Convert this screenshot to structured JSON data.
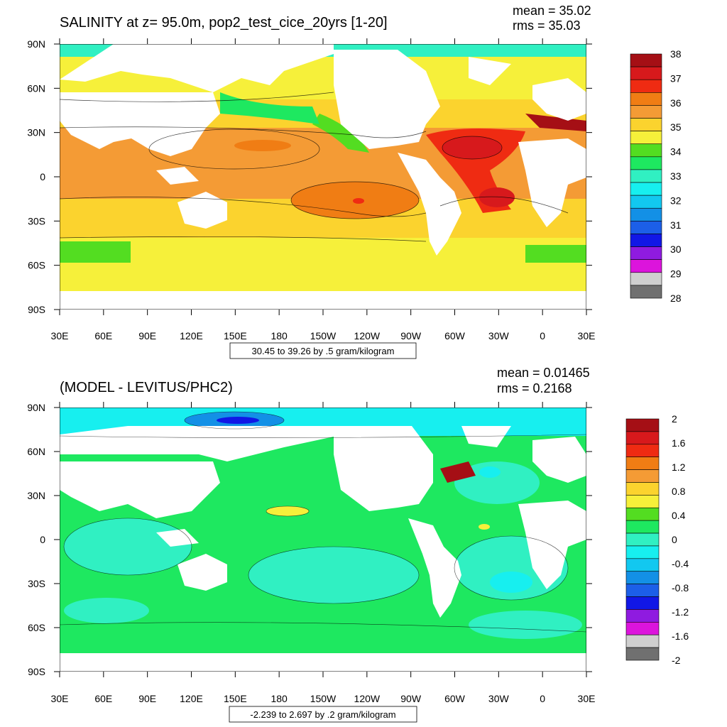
{
  "panels": [
    {
      "id": "top",
      "title": "SALINITY at z=  95.0m, pop2_test_cice_20yrs [1-20]",
      "stats": {
        "mean": "mean = 35.02",
        "rms": "rms = 35.03"
      },
      "info_box": "30.45 to 39.26 by .5 gram/kilogram",
      "colorbar": {
        "labels": [
          "38",
          "37",
          "36",
          "35",
          "34",
          "33",
          "32",
          "31",
          "30",
          "29",
          "28"
        ],
        "colors": [
          "#a50f15",
          "#d7191c",
          "#ef2b12",
          "#f07d14",
          "#f49b35",
          "#fbd32e",
          "#f6f03a",
          "#53dd21",
          "#1ee860",
          "#30f0c2",
          "#17efef",
          "#12c8f0",
          "#1390e6",
          "#1c5fe8",
          "#1117e6",
          "#8f1be0",
          "#dc14dc",
          "#cfcfcf",
          "#707070"
        ]
      },
      "ylabels": [
        "90N",
        "60N",
        "30N",
        "0",
        "30S",
        "60S",
        "90S"
      ],
      "xlabels": [
        "30E",
        "60E",
        "90E",
        "120E",
        "150E",
        "180",
        "150W",
        "120W",
        "90W",
        "60W",
        "30W",
        "0",
        "30E"
      ]
    },
    {
      "id": "bottom",
      "title": "(MODEL - LEVITUS/PHC2)",
      "stats": {
        "mean": "mean = 0.01465",
        "rms": "rms = 0.2168"
      },
      "info_box": "-2.239 to 2.697 by .2 gram/kilogram",
      "colorbar": {
        "labels": [
          "2",
          "1.6",
          "1.2",
          "0.8",
          "0.4",
          "0",
          "-0.4",
          "-0.8",
          "-1.2",
          "-1.6",
          "-2"
        ],
        "colors": [
          "#a50f15",
          "#d7191c",
          "#ef2b12",
          "#f07d14",
          "#f49b35",
          "#fbd32e",
          "#f6f03a",
          "#53dd21",
          "#1ee860",
          "#30f0c2",
          "#17efef",
          "#12c8f0",
          "#1390e6",
          "#1c5fe8",
          "#1117e6",
          "#8f1be0",
          "#dc14dc",
          "#cfcfcf",
          "#707070"
        ]
      },
      "ylabels": [
        "90N",
        "60N",
        "30N",
        "0",
        "30S",
        "60S",
        "90S"
      ],
      "xlabels": [
        "30E",
        "60E",
        "90E",
        "120E",
        "150E",
        "180",
        "150W",
        "120W",
        "90W",
        "60W",
        "30W",
        "0",
        "30E"
      ]
    }
  ]
}
